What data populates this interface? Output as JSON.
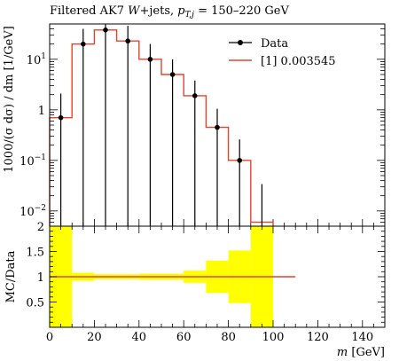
{
  "title": "Filtered AK7 W+jets, p_{T,j} = 150–220 GeV",
  "title_parts": {
    "prefix": "Filtered AK7 ",
    "w": "W",
    "mid": "+jets, ",
    "p": "p",
    "sub": "T,j",
    "suffix": " = 150–220 GeV"
  },
  "colors": {
    "data": "#000000",
    "mc": "#e8412c",
    "band": "#ffff00"
  },
  "chart_data": [
    {
      "type": "line",
      "panel": "main",
      "ylabel": "1000/(σ dσ) / dm [1/GeV]",
      "yscale": "log",
      "ylim": [
        0.005,
        50
      ],
      "xlim": [
        0,
        150
      ],
      "yticks": [
        {
          "value": 0.01,
          "label": "10",
          "exp": "−2"
        },
        {
          "value": 0.1,
          "label": "10",
          "exp": "−1"
        },
        {
          "value": 1,
          "label": "1",
          "exp": ""
        },
        {
          "value": 10,
          "label": "10",
          "exp": "1"
        }
      ],
      "legend": {
        "placement": "top-right",
        "entries": [
          {
            "label": "Data",
            "style": "points"
          },
          {
            "label": "[1] 0.003545",
            "style": "line"
          }
        ]
      },
      "series": [
        {
          "name": "Data",
          "x": [
            5,
            15,
            25,
            35,
            45,
            55,
            65,
            75,
            85,
            95
          ],
          "y": [
            0.7,
            20,
            38,
            23,
            10,
            5,
            1.9,
            0.45,
            0.1,
            0.006
          ],
          "yerr_low": [
            0.7,
            20,
            38,
            23,
            10,
            5,
            1.9,
            0.45,
            0.1,
            0.006
          ],
          "yerr_high": [
            1.4,
            20,
            38,
            23,
            10,
            5,
            1.9,
            0.6,
            0.16,
            0.028
          ],
          "points": [
            true,
            true,
            true,
            true,
            true,
            true,
            true,
            true,
            true,
            false
          ]
        },
        {
          "name": "[1] 0.003545",
          "bin_edges": [
            0,
            10,
            20,
            30,
            40,
            50,
            60,
            70,
            80,
            90,
            100
          ],
          "values": [
            0.7,
            20,
            38,
            23,
            10,
            5,
            1.9,
            0.45,
            0.1,
            0.006
          ]
        }
      ]
    },
    {
      "type": "area",
      "panel": "ratio",
      "ylabel": "MC/Data",
      "xlabel_var": "m",
      "xlabel_unit": "[GeV]",
      "xlim": [
        0,
        150
      ],
      "ylim": [
        0,
        2
      ],
      "xticks": [
        0,
        20,
        40,
        60,
        80,
        100,
        120,
        140
      ],
      "yticks": [
        0.5,
        1,
        1.5,
        2
      ],
      "ratio_line": {
        "x": [
          0,
          110
        ],
        "y": 1
      },
      "band": {
        "bin_edges": [
          0,
          10,
          20,
          30,
          40,
          50,
          60,
          70,
          80,
          90,
          100
        ],
        "low": [
          0,
          0.92,
          0.95,
          0.95,
          0.94,
          0.94,
          0.88,
          0.68,
          0.48,
          0
        ],
        "high": [
          2,
          1.08,
          1.05,
          1.05,
          1.06,
          1.06,
          1.12,
          1.32,
          1.52,
          2
        ]
      }
    }
  ]
}
